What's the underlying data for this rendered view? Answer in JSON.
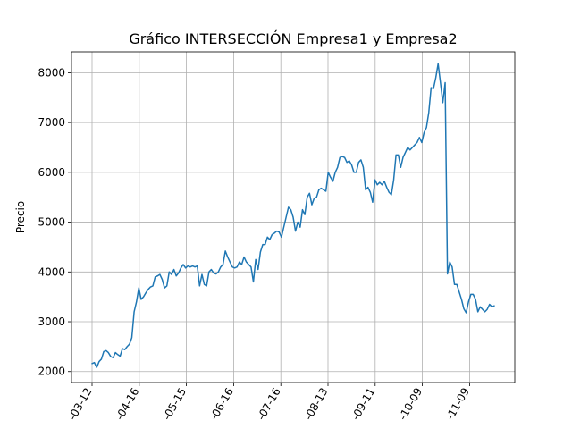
{
  "chart_data": {
    "type": "line",
    "title": "Gráfico INTERSECCIÓN Empresa1 y Empresa2",
    "xlabel": "",
    "ylabel": "Precio",
    "grid": true,
    "ylim": [
      1780,
      8420
    ],
    "xlim": [
      -4,
      89
    ],
    "yticks": [
      2000,
      3000,
      4000,
      5000,
      6000,
      7000,
      8000
    ],
    "xticks": [
      {
        "i": 0,
        "label": "-03-12"
      },
      {
        "i": 10,
        "label": "-04-16"
      },
      {
        "i": 20,
        "label": "-05-15"
      },
      {
        "i": 30,
        "label": "-06-16"
      },
      {
        "i": 40,
        "label": "-07-16"
      },
      {
        "i": 50,
        "label": "-08-13"
      },
      {
        "i": 60,
        "label": "-09-11"
      },
      {
        "i": 70,
        "label": "-10-09"
      },
      {
        "i": 80,
        "label": "-11-09"
      }
    ],
    "series": [
      {
        "color": "#1f77b4",
        "values": [
          2160,
          2180,
          2080,
          2200,
          2250,
          2400,
          2420,
          2380,
          2300,
          2280,
          2380,
          2340,
          2310,
          2460,
          2440,
          2500,
          2550,
          2680,
          3200,
          3400,
          3680,
          3450,
          3500,
          3580,
          3650,
          3700,
          3720,
          3900,
          3920,
          3950,
          3850,
          3680,
          3720,
          4000,
          3950,
          4050,
          3920,
          3980,
          4080,
          4150,
          4080,
          4120,
          4100,
          4120,
          4100,
          4120,
          3720,
          3950,
          3750,
          3720,
          4000,
          4050,
          3980,
          3960,
          4000,
          4100,
          4150,
          4420,
          4300,
          4200,
          4100,
          4080,
          4100,
          4200,
          4150,
          4300,
          4200,
          4150,
          4100,
          3800,
          4250,
          4050,
          4400,
          4550,
          4550,
          4700,
          4650,
          4750,
          4780,
          4820,
          4800,
          4700,
          4900,
          5100,
          5300,
          5250,
          5100,
          4820,
          5000,
          4900,
          5250,
          5150,
          5500,
          5580,
          5350,
          5480,
          5500,
          5650,
          5680,
          5650,
          5620,
          6000,
          5900,
          5820,
          6000,
          6100,
          6300,
          6320,
          6300,
          6200,
          6230,
          6150,
          6000,
          6000,
          6200,
          6250,
          6100,
          5650,
          5700,
          5600,
          5400,
          5850,
          5750,
          5800,
          5750,
          5820,
          5700,
          5600,
          5550,
          5850,
          6350,
          6350,
          6100,
          6300,
          6400,
          6500,
          6450,
          6500,
          6550,
          6600,
          6700,
          6600,
          6800,
          6900,
          7200,
          7700,
          7680,
          7900,
          8180,
          7800,
          7400,
          7800,
          3960,
          4200,
          4100,
          3750,
          3750,
          3600,
          3450,
          3260,
          3180,
          3400,
          3550,
          3550,
          3450,
          3200,
          3300,
          3250,
          3200,
          3250,
          3350,
          3300,
          3320
        ]
      }
    ]
  }
}
